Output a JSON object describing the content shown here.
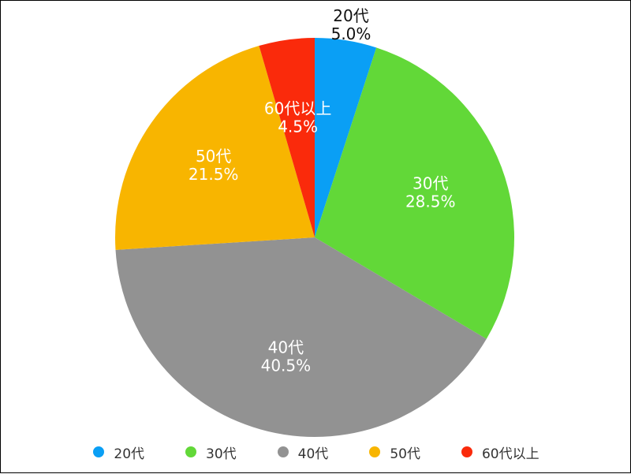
{
  "chart_data": {
    "type": "pie",
    "title": "",
    "slices": [
      {
        "name": "20代",
        "value": 5.0,
        "label": "5.0%",
        "color": "#0A9FF5"
      },
      {
        "name": "30代",
        "value": 28.5,
        "label": "28.5%",
        "color": "#62D838"
      },
      {
        "name": "40代",
        "value": 40.5,
        "label": "40.5%",
        "color": "#929292"
      },
      {
        "name": "50代",
        "value": 21.5,
        "label": "21.5%",
        "color": "#F8B500"
      },
      {
        "name": "60代以上",
        "value": 4.5,
        "label": "4.5%",
        "color": "#FA2A0B"
      }
    ],
    "legend_position": "bottom"
  }
}
